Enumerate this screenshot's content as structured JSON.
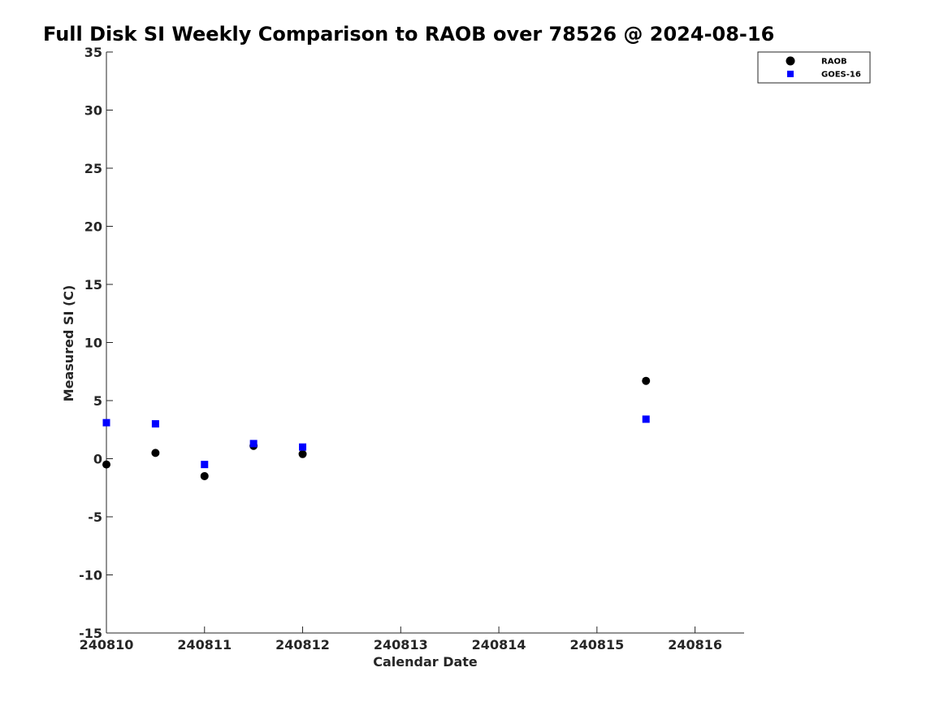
{
  "chart_data": {
    "type": "scatter",
    "title": "Full Disk SI Weekly Comparison to RAOB over 78526 @ 2024-08-16",
    "xlabel": "Calendar Date",
    "ylabel": "Measured SI (C)",
    "x_ticks": [
      {
        "value": "2024-08-10",
        "label": "240810"
      },
      {
        "value": "2024-08-11",
        "label": "240811"
      },
      {
        "value": "2024-08-12",
        "label": "240812"
      },
      {
        "value": "2024-08-13",
        "label": "240813"
      },
      {
        "value": "2024-08-14",
        "label": "240814"
      },
      {
        "value": "2024-08-15",
        "label": "240815"
      },
      {
        "value": "2024-08-16",
        "label": "240816"
      }
    ],
    "xlim": [
      "2024-08-10T00:00",
      "2024-08-16T12:00"
    ],
    "ylim": [
      -15,
      35
    ],
    "y_ticks": [
      35,
      30,
      25,
      20,
      15,
      10,
      5,
      0,
      -5,
      -10,
      -15
    ],
    "grid": false,
    "legend_position": "top-right",
    "series": [
      {
        "name": "RAOB",
        "marker": "circle",
        "color": "#000000",
        "points": [
          {
            "x": "2024-08-10T00:00",
            "y": -0.5
          },
          {
            "x": "2024-08-10T12:00",
            "y": 0.5
          },
          {
            "x": "2024-08-11T00:00",
            "y": -1.5
          },
          {
            "x": "2024-08-11T12:00",
            "y": 1.1
          },
          {
            "x": "2024-08-12T00:00",
            "y": 0.4
          },
          {
            "x": "2024-08-15T12:00",
            "y": 6.7
          }
        ]
      },
      {
        "name": "GOES-16",
        "marker": "square",
        "color": "#0000ff",
        "points": [
          {
            "x": "2024-08-10T00:00",
            "y": 3.1
          },
          {
            "x": "2024-08-10T12:00",
            "y": 3.0
          },
          {
            "x": "2024-08-11T00:00",
            "y": -0.5
          },
          {
            "x": "2024-08-11T12:00",
            "y": 1.3
          },
          {
            "x": "2024-08-12T00:00",
            "y": 1.0
          },
          {
            "x": "2024-08-15T12:00",
            "y": 3.4
          }
        ]
      }
    ]
  }
}
